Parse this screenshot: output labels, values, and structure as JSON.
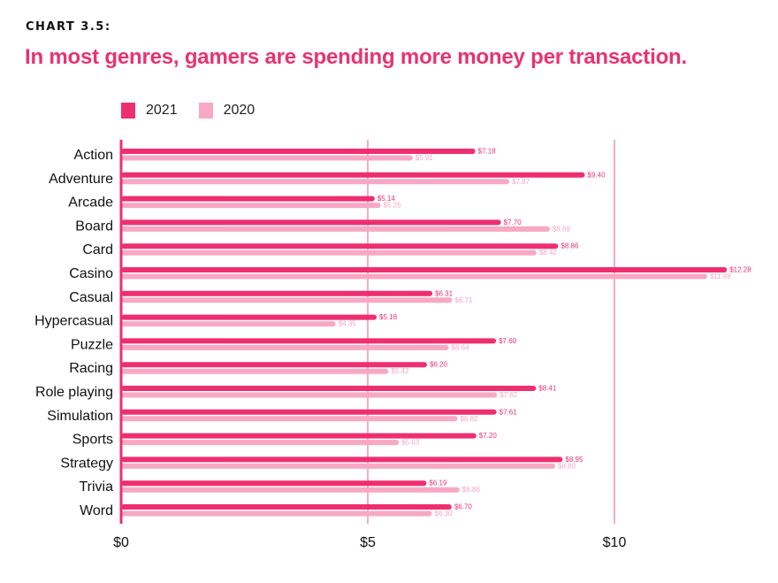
{
  "header": {
    "kicker": "CHART 3.5:",
    "title": "In most genres, gamers are spending more money per transaction."
  },
  "colors": {
    "series_2021": "#ee2f6f",
    "series_2020": "#f7a8c4",
    "label_2021": "#e8336f",
    "label_2020": "#f4a6c1",
    "gridline": "#ea5b8c",
    "axis": "#ee2f6f",
    "text": "#111111"
  },
  "chart_data": {
    "type": "bar",
    "orientation": "horizontal",
    "title": "In most genres, gamers are spending more money per transaction.",
    "xlabel": "",
    "ylabel": "",
    "xlim": [
      0,
      13
    ],
    "x_ticks": [
      0,
      5,
      10
    ],
    "x_tick_labels": [
      "$0",
      "$5",
      "$10"
    ],
    "grid": "vertical",
    "legend_position": "top-left",
    "categories": [
      "Action",
      "Adventure",
      "Arcade",
      "Board",
      "Card",
      "Casino",
      "Casual",
      "Hypercasual",
      "Puzzle",
      "Racing",
      "Role playing",
      "Simulation",
      "Sports",
      "Strategy",
      "Trivia",
      "Word"
    ],
    "series": [
      {
        "name": "2021",
        "values": [
          7.18,
          9.4,
          5.14,
          7.7,
          8.86,
          12.28,
          6.31,
          5.18,
          7.6,
          6.2,
          8.41,
          7.61,
          7.2,
          8.95,
          6.19,
          6.7
        ],
        "labels": [
          "$7.18",
          "$9.40",
          "$5.14",
          "$7.70",
          "$8.86",
          "$12.28",
          "$6.31",
          "$5.18",
          "$7.60",
          "$6.20",
          "$8.41",
          "$7.61",
          "$7.20",
          "$8.95",
          "$6.19",
          "$6.70"
        ]
      },
      {
        "name": "2020",
        "values": [
          5.91,
          7.87,
          5.26,
          8.69,
          8.42,
          11.88,
          6.71,
          4.35,
          6.64,
          5.42,
          7.62,
          6.82,
          5.63,
          8.8,
          6.86,
          6.3
        ],
        "labels": [
          "$5.91",
          "$7.87",
          "$5.26",
          "$8.69",
          "$8.42",
          "$11.88",
          "$6.71",
          "$4.35",
          "$6.64",
          "$5.42",
          "$7.62",
          "$6.82",
          "$5.63",
          "$8.80",
          "$6.86",
          "$6.30"
        ]
      }
    ]
  }
}
